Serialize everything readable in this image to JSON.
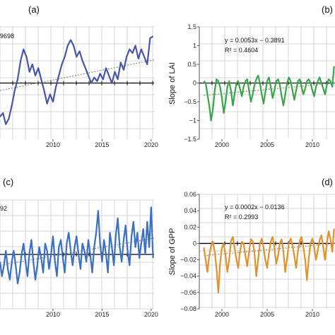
{
  "chart_data": [
    {
      "type": "line",
      "panel_label": "(a)",
      "ylabel": "",
      "eq_line1": "",
      "eq_line2": "",
      "eq_partial": "9698",
      "xlim": [
        2004.6,
        2020.3
      ],
      "ylim": [
        -1.5,
        1.5
      ],
      "xticks": [
        "2010",
        "2015",
        "2020"
      ],
      "yticks": [],
      "color": "#4a55a8",
      "trend": [
        [
          2004.6,
          -0.2
        ],
        [
          2020.3,
          0.62
        ]
      ],
      "x": [
        2004.6,
        2004.9,
        2005.2,
        2005.5,
        2005.8,
        2006.1,
        2006.4,
        2006.7,
        2007.0,
        2007.3,
        2007.6,
        2007.9,
        2008.2,
        2008.5,
        2008.8,
        2009.1,
        2009.4,
        2009.7,
        2010.0,
        2010.3,
        2010.6,
        2010.9,
        2011.2,
        2011.5,
        2011.8,
        2012.1,
        2012.4,
        2012.7,
        2013.0,
        2013.3,
        2013.6,
        2013.9,
        2014.2,
        2014.5,
        2014.8,
        2015.1,
        2015.4,
        2015.7,
        2016.0,
        2016.3,
        2016.6,
        2016.9,
        2017.2,
        2017.5,
        2017.8,
        2018.1,
        2018.4,
        2018.7,
        2019.0,
        2019.3,
        2019.6,
        2019.9,
        2020.2
      ],
      "values": [
        -0.9,
        -0.8,
        -1.1,
        -0.95,
        -0.6,
        -0.2,
        0.1,
        0.6,
        0.9,
        0.7,
        0.3,
        0.5,
        0.2,
        0.4,
        0.1,
        -0.2,
        -0.55,
        -0.3,
        -0.5,
        -0.1,
        0.2,
        0.5,
        0.7,
        1.0,
        1.15,
        1.0,
        0.7,
        0.85,
        0.6,
        0.4,
        0.2,
        0.0,
        0.15,
        0.05,
        0.25,
        0.1,
        0.4,
        0.2,
        0.0,
        0.3,
        0.1,
        0.55,
        0.35,
        0.7,
        0.9,
        0.8,
        1.0,
        0.65,
        0.9,
        0.7,
        0.5,
        1.2,
        1.25
      ]
    },
    {
      "type": "line",
      "panel_label": "(b)",
      "ylabel": "Slope of LAI",
      "eq_line1": "y = 0.0053x − 0.3891",
      "eq_line2": "R² = 0.4604",
      "eq_partial": "",
      "xlim": [
        1997.5,
        2012.5
      ],
      "ylim": [
        -1.5,
        1.5
      ],
      "xticks": [
        "2000",
        "2005",
        "2010"
      ],
      "yticks": [
        "1.5",
        "1",
        "0.5",
        "0",
        "−0.5",
        "−1",
        "−1.5"
      ],
      "color": "#3aa548",
      "trend": [
        [
          1998.0,
          -0.33
        ],
        [
          2012.5,
          0.0
        ]
      ],
      "x": [
        1998.0,
        1998.2,
        1998.4,
        1998.6,
        1998.8,
        1999.0,
        1999.2,
        1999.4,
        1999.6,
        1999.8,
        2000.0,
        2000.2,
        2000.4,
        2000.6,
        2000.8,
        2001.0,
        2001.2,
        2001.4,
        2001.6,
        2001.8,
        2002.0,
        2002.2,
        2002.4,
        2002.6,
        2002.8,
        2003.0,
        2003.2,
        2003.4,
        2003.6,
        2003.8,
        2004.0,
        2004.2,
        2004.4,
        2004.6,
        2004.8,
        2005.0,
        2005.2,
        2005.4,
        2005.6,
        2005.8,
        2006.0,
        2006.2,
        2006.4,
        2006.6,
        2006.8,
        2007.0,
        2007.2,
        2007.4,
        2007.6,
        2007.8,
        2008.0,
        2008.2,
        2008.4,
        2008.6,
        2008.8,
        2009.0,
        2009.2,
        2009.4,
        2009.6,
        2009.8,
        2010.0,
        2010.2,
        2010.4,
        2010.6,
        2010.8,
        2011.0,
        2011.2,
        2011.4,
        2011.6,
        2011.8,
        2012.0,
        2012.2,
        2012.4
      ],
      "values": [
        0.05,
        0.0,
        -0.3,
        -0.6,
        -1.0,
        -0.7,
        -0.2,
        0.1,
        0.05,
        -0.1,
        -0.4,
        -0.8,
        -0.5,
        -0.1,
        0.05,
        -0.2,
        -0.6,
        -0.3,
        0.0,
        0.05,
        -0.15,
        -0.35,
        -0.1,
        0.05,
        0.1,
        -0.2,
        -0.5,
        -0.3,
        -0.05,
        0.1,
        0.2,
        0.0,
        -0.3,
        -0.55,
        -0.25,
        0.05,
        0.15,
        -0.1,
        -0.4,
        -0.2,
        0.05,
        0.1,
        -0.05,
        -0.35,
        -0.6,
        -0.3,
        0.0,
        0.15,
        0.05,
        -0.2,
        -0.45,
        -0.2,
        0.05,
        0.1,
        -0.1,
        -0.3,
        -0.15,
        0.05,
        0.1,
        0.0,
        -0.2,
        -0.35,
        -0.1,
        0.05,
        0.15,
        0.0,
        -0.15,
        -0.3,
        -0.05,
        0.1,
        0.05,
        -0.1,
        0.45
      ]
    },
    {
      "type": "line",
      "panel_label": "(c)",
      "ylabel": "",
      "eq_line1": "",
      "eq_line2": "",
      "eq_partial": "92",
      "xlim": [
        2004.6,
        2020.3
      ],
      "ylim": [
        -1.5,
        1.5
      ],
      "xticks": [
        "2010",
        "2015",
        "2020"
      ],
      "yticks": [],
      "color": "#3a6fc4",
      "trend": [
        [
          2004.6,
          -0.3
        ],
        [
          2020.3,
          0.45
        ]
      ],
      "x": [
        2004.6,
        2004.8,
        2005.0,
        2005.2,
        2005.4,
        2005.6,
        2005.8,
        2006.0,
        2006.2,
        2006.4,
        2006.6,
        2006.8,
        2007.0,
        2007.2,
        2007.4,
        2007.6,
        2007.8,
        2008.0,
        2008.2,
        2008.4,
        2008.6,
        2008.8,
        2009.0,
        2009.2,
        2009.4,
        2009.6,
        2009.8,
        2010.0,
        2010.2,
        2010.4,
        2010.6,
        2010.8,
        2011.0,
        2011.2,
        2011.4,
        2011.6,
        2011.8,
        2012.0,
        2012.2,
        2012.4,
        2012.6,
        2012.8,
        2013.0,
        2013.2,
        2013.4,
        2013.6,
        2013.8,
        2014.0,
        2014.2,
        2014.4,
        2014.6,
        2014.8,
        2015.0,
        2015.2,
        2015.4,
        2015.6,
        2015.8,
        2016.0,
        2016.2,
        2016.4,
        2016.6,
        2016.8,
        2017.0,
        2017.2,
        2017.4,
        2017.6,
        2017.8,
        2018.0,
        2018.2,
        2018.4,
        2018.6,
        2018.8,
        2019.0,
        2019.2,
        2019.4,
        2019.6,
        2019.8,
        2020.0,
        2020.2
      ],
      "values": [
        -0.2,
        -0.6,
        -0.3,
        0.1,
        -0.4,
        -0.7,
        -0.2,
        0.1,
        -0.3,
        -0.8,
        -0.5,
        0.0,
        0.3,
        -0.2,
        -0.6,
        0.05,
        0.4,
        -0.2,
        -0.7,
        -0.3,
        0.2,
        -0.1,
        -0.5,
        0.3,
        0.1,
        -0.4,
        0.0,
        0.5,
        -0.2,
        -0.6,
        0.2,
        0.4,
        -0.1,
        -0.5,
        0.3,
        0.6,
        0.1,
        -0.3,
        0.2,
        0.5,
        0.0,
        -0.4,
        0.3,
        0.1,
        -0.2,
        0.4,
        0.0,
        -0.5,
        0.2,
        0.6,
        1.2,
        0.3,
        -0.2,
        0.4,
        0.0,
        -0.5,
        0.6,
        0.2,
        -0.3,
        0.5,
        1.0,
        0.2,
        -0.2,
        0.4,
        0.8,
        0.1,
        -0.3,
        0.5,
        0.9,
        0.2,
        0.6,
        -0.1,
        0.3,
        0.7,
        0.0,
        0.9,
        0.2,
        1.3,
        -0.1
      ]
    },
    {
      "type": "line",
      "panel_label": "(d)",
      "ylabel": "Slope of GPP",
      "eq_line1": "y = 0.0002x − 0.0136",
      "eq_line2": "R² = 0.2993",
      "eq_partial": "",
      "xlim": [
        1997.5,
        2012.5
      ],
      "ylim": [
        -0.08,
        0.06
      ],
      "xticks": [
        "2000",
        "2005",
        "2010"
      ],
      "yticks": [
        "0.06",
        "0.04",
        "0.02",
        "0",
        "−0.02",
        "−0.04",
        "−0.06",
        "−0.08"
      ],
      "color": "#e0922e",
      "trend": [
        [
          1998.0,
          -0.015
        ],
        [
          2012.5,
          0.0
        ]
      ],
      "x": [
        1998.0,
        1998.2,
        1998.4,
        1998.6,
        1998.8,
        1999.0,
        1999.2,
        1999.4,
        1999.6,
        1999.8,
        2000.0,
        2000.2,
        2000.4,
        2000.6,
        2000.8,
        2001.0,
        2001.2,
        2001.4,
        2001.6,
        2001.8,
        2002.0,
        2002.2,
        2002.4,
        2002.6,
        2002.8,
        2003.0,
        2003.2,
        2003.4,
        2003.6,
        2003.8,
        2004.0,
        2004.2,
        2004.4,
        2004.6,
        2004.8,
        2005.0,
        2005.2,
        2005.4,
        2005.6,
        2005.8,
        2006.0,
        2006.2,
        2006.4,
        2006.6,
        2006.8,
        2007.0,
        2007.2,
        2007.4,
        2007.6,
        2007.8,
        2008.0,
        2008.2,
        2008.4,
        2008.6,
        2008.8,
        2009.0,
        2009.2,
        2009.4,
        2009.6,
        2009.8,
        2010.0,
        2010.2,
        2010.4,
        2010.6,
        2010.8,
        2011.0,
        2011.2,
        2011.4,
        2011.6,
        2011.8,
        2012.0,
        2012.2,
        2012.4
      ],
      "values": [
        -0.005,
        -0.02,
        -0.035,
        -0.015,
        -0.003,
        0.002,
        -0.01,
        -0.03,
        -0.06,
        -0.025,
        -0.005,
        0.0,
        -0.015,
        -0.035,
        -0.02,
        0.003,
        0.008,
        -0.005,
        -0.02,
        -0.03,
        -0.01,
        0.002,
        0.0,
        -0.015,
        -0.028,
        -0.01,
        0.005,
        0.003,
        -0.012,
        -0.04,
        -0.02,
        0.0,
        0.006,
        -0.005,
        -0.02,
        -0.03,
        -0.012,
        0.002,
        0.008,
        -0.005,
        -0.025,
        -0.015,
        0.0,
        0.005,
        -0.01,
        -0.035,
        -0.018,
        0.0,
        0.006,
        -0.002,
        -0.015,
        -0.03,
        -0.01,
        0.003,
        0.008,
        -0.004,
        -0.02,
        -0.045,
        -0.018,
        0.0,
        0.006,
        -0.005,
        -0.02,
        -0.008,
        0.004,
        0.01,
        -0.005,
        -0.02,
        0.0,
        0.015,
        0.005,
        -0.01,
        0.018
      ]
    }
  ]
}
